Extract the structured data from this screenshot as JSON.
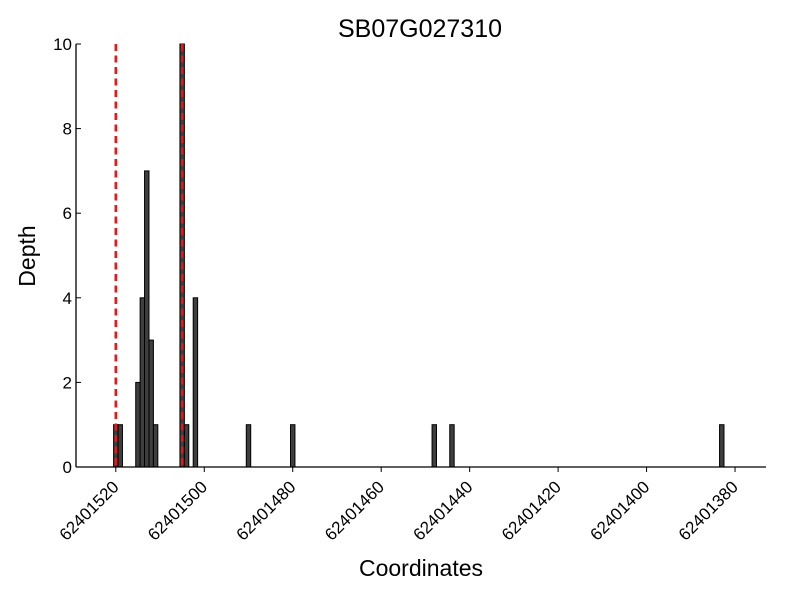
{
  "chart_data": {
    "type": "bar",
    "title": "SB07G027310",
    "xlabel": "Coordinates",
    "ylabel": "Depth",
    "xlim": [
      62401529,
      62401373
    ],
    "ylim": [
      0,
      10
    ],
    "x_ticks": [
      62401520,
      62401500,
      62401480,
      62401460,
      62401440,
      62401420,
      62401400,
      62401380
    ],
    "y_ticks": [
      0,
      2,
      4,
      6,
      8,
      10
    ],
    "bar_color": "#3f3f3f",
    "bar_edge_color": "#000000",
    "marker_color": "#e31a1c",
    "grid": false,
    "x": [
      62401520,
      62401519,
      62401515,
      62401514,
      62401513,
      62401512,
      62401511,
      62401505,
      62401504,
      62401502,
      62401490,
      62401480,
      62401448,
      62401444,
      62401383
    ],
    "values": [
      1,
      1,
      2,
      4,
      7,
      3,
      1,
      10,
      1,
      4,
      1,
      1,
      1,
      1,
      1
    ],
    "markers": [
      62401520,
      62401505
    ]
  }
}
